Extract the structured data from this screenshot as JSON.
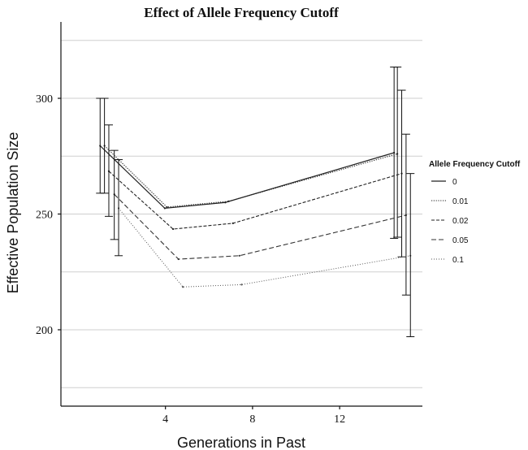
{
  "chart_data": {
    "type": "line",
    "title": "Effect of Allele Frequency Cutoff",
    "xlabel": "Generations in Past",
    "ylabel": "Effective Population Size",
    "xlim": [
      -0.8,
      15.8
    ],
    "ylim": [
      167,
      333
    ],
    "xticks": [
      4,
      8,
      12
    ],
    "yticks": [
      200,
      250,
      300
    ],
    "y_minor_gridlines": [
      175,
      225,
      275,
      325
    ],
    "grid": true,
    "legend": {
      "title": "Allele Frequency Cutoff",
      "position": "right"
    },
    "series": [
      {
        "name": "0",
        "dash": "solid",
        "x": [
          1.0,
          3.97,
          6.75,
          14.5
        ],
        "y": [
          279.5,
          252.5,
          255.0,
          276.5
        ],
        "error_high": [
          300.0,
          null,
          null,
          313.5
        ],
        "error_low": [
          259.0,
          null,
          null,
          239.5
        ]
      },
      {
        "name": "0.01",
        "dash": "dotted",
        "x": [
          1.2,
          4.07,
          6.9,
          14.65
        ],
        "y": [
          279.5,
          253.0,
          255.5,
          276.0
        ],
        "error_high": [
          300.0,
          null,
          null,
          313.5
        ],
        "error_low": [
          259.0,
          null,
          null,
          240.0
        ]
      },
      {
        "name": "0.02",
        "dash": "dashed",
        "x": [
          1.4,
          4.35,
          7.1,
          14.85
        ],
        "y": [
          268.5,
          243.5,
          246.0,
          267.5
        ],
        "error_high": [
          288.5,
          null,
          null,
          303.5
        ],
        "error_low": [
          249.0,
          null,
          null,
          231.5
        ]
      },
      {
        "name": "0.05",
        "dash": "longdash",
        "x": [
          1.65,
          4.6,
          7.4,
          15.05
        ],
        "y": [
          258.5,
          230.5,
          232.0,
          249.5
        ],
        "error_high": [
          277.5,
          null,
          null,
          284.5
        ],
        "error_low": [
          239.0,
          null,
          null,
          215.0
        ]
      },
      {
        "name": "0.1",
        "dash": "finedot",
        "x": [
          1.85,
          4.8,
          7.5,
          15.25
        ],
        "y": [
          252.5,
          218.5,
          219.5,
          232.0
        ],
        "error_high": [
          273.5,
          null,
          null,
          267.5
        ],
        "error_low": [
          232.0,
          null,
          null,
          197.0
        ]
      }
    ]
  }
}
